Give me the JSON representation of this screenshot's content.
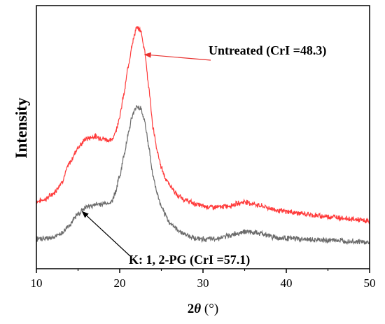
{
  "chart_data": {
    "type": "line",
    "xlabel": "2θ (°)",
    "xlabel_prefix": "2",
    "xlabel_symbol": "θ",
    "xlabel_unit": " (°)",
    "ylabel": "Intensity",
    "xlim": [
      10,
      50
    ],
    "ylim": [
      0,
      1
    ],
    "xticks": [
      10,
      20,
      30,
      40,
      50
    ],
    "grid": false,
    "y_ticklabels_shown": false,
    "series": [
      {
        "color": "#ff3b3b",
        "x": [
          10,
          11,
          12,
          13,
          14,
          15,
          16,
          17,
          18,
          19,
          19.5,
          20,
          20.5,
          21,
          21.5,
          22,
          22.5,
          23,
          23.5,
          24,
          24.5,
          25,
          25.5,
          26,
          27,
          28,
          29,
          30,
          31,
          32,
          33,
          34,
          35,
          36,
          37,
          38,
          39,
          40,
          42,
          44,
          46,
          48,
          50
        ],
        "y": [
          0.215,
          0.225,
          0.25,
          0.3,
          0.39,
          0.46,
          0.5,
          0.51,
          0.5,
          0.49,
          0.53,
          0.6,
          0.7,
          0.82,
          0.93,
          1.0,
          0.99,
          0.9,
          0.73,
          0.55,
          0.44,
          0.37,
          0.32,
          0.29,
          0.24,
          0.22,
          0.205,
          0.195,
          0.19,
          0.19,
          0.195,
          0.205,
          0.215,
          0.205,
          0.195,
          0.185,
          0.175,
          0.17,
          0.16,
          0.15,
          0.145,
          0.135,
          0.125
        ]
      },
      {
        "color": "#6b6b6b",
        "x": [
          10,
          11,
          12,
          13,
          14,
          15,
          16,
          17,
          18,
          19,
          19.5,
          20,
          20.5,
          21,
          21.5,
          22,
          22.5,
          23,
          23.5,
          24,
          24.5,
          25,
          25.5,
          26,
          27,
          28,
          29,
          30,
          31,
          32,
          33,
          34,
          35,
          36,
          37,
          38,
          39,
          40,
          42,
          44,
          46,
          48,
          50
        ],
        "y": [
          0.045,
          0.048,
          0.052,
          0.07,
          0.11,
          0.16,
          0.19,
          0.2,
          0.205,
          0.21,
          0.26,
          0.33,
          0.42,
          0.52,
          0.6,
          0.645,
          0.64,
          0.58,
          0.46,
          0.33,
          0.25,
          0.19,
          0.15,
          0.12,
          0.085,
          0.065,
          0.05,
          0.045,
          0.045,
          0.05,
          0.06,
          0.07,
          0.08,
          0.075,
          0.07,
          0.06,
          0.05,
          0.05,
          0.045,
          0.04,
          0.04,
          0.035,
          0.03
        ]
      }
    ],
    "annotations": [
      {
        "text": "Untreated (CrI =48.3)",
        "arrow_to": {
          "x": 23,
          "y": 0.88
        }
      },
      {
        "text": "K: 1, 2-PG (CrI =57.1)",
        "arrow_to": {
          "x": 15.5,
          "y": 0.17
        }
      }
    ]
  }
}
